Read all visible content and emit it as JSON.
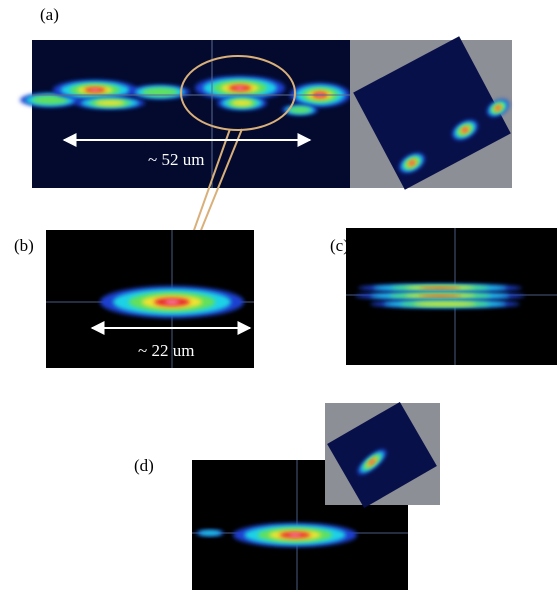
{
  "panel_a": {
    "label": "(a)",
    "scale_text": "~ 52  um"
  },
  "panel_b": {
    "label": "(b)",
    "scale_text": "~ 22 um"
  },
  "panel_c": {
    "label": "(c)"
  },
  "panel_d": {
    "label": "(d)"
  }
}
